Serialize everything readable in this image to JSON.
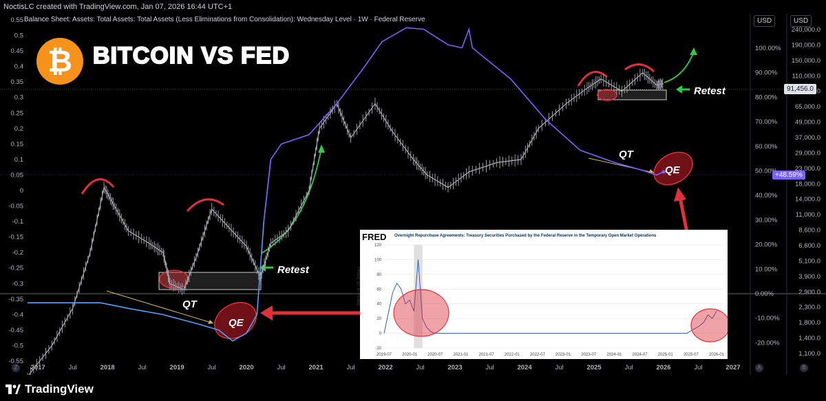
{
  "header": {
    "creator_line": "NoctisLC created with TradingView.com, Jan 07, 2026 16:44 UTC+1",
    "series_title": "Balance Sheet: Assets: Total Assets: Total Assets (Less Eliminations from Consolidation): Wednesday Level · 1W · Federal Reserve",
    "currency_left": "USD",
    "currency_right": "USD"
  },
  "overlay": {
    "title": "BITCOIN VS FED",
    "logo_icon": "bitcoin-logo-icon",
    "qt_label_left": "QT",
    "qe_label_left": "QE",
    "qt_label_right": "QT",
    "qe_label_right": "QE",
    "retest_left": "Retest",
    "retest_right": "Retest"
  },
  "price_scale": {
    "last_price": "91,456.0",
    "pct_badge": "+48.59%"
  },
  "footer": {
    "brand": "TradingView",
    "corner_left": "Z",
    "corner_right_a": "A",
    "corner_right_b": "B"
  },
  "fred_inset": {
    "logo": "FRED",
    "title": "Overnight Repurchase Agreements: Treasury Securities Purchased by the Federal Reserve in the Temporary Open Market Operations",
    "ylabel": "Billions of US Dollars",
    "x_ticks": [
      "2019-07",
      "2020-01",
      "2020-07",
      "2021-01",
      "2021-07",
      "2022-01",
      "2022-07",
      "2023-01",
      "2023-07",
      "2024-01",
      "2024-07",
      "2025-01",
      "2025-07",
      "2026-01"
    ],
    "y_ticks": [
      "120",
      "100",
      "80",
      "60",
      "40",
      "20",
      "0",
      "-20"
    ],
    "series": [
      {
        "x": "2019-07",
        "y": 0
      },
      {
        "x": "2019-09",
        "y": 55
      },
      {
        "x": "2019-10",
        "y": 68
      },
      {
        "x": "2019-11",
        "y": 60
      },
      {
        "x": "2019-12",
        "y": 40
      },
      {
        "x": "2020-01",
        "y": 45
      },
      {
        "x": "2020-02",
        "y": 30
      },
      {
        "x": "2020-03",
        "y": 100
      },
      {
        "x": "2020-04",
        "y": 20
      },
      {
        "x": "2020-05",
        "y": 8
      },
      {
        "x": "2020-06",
        "y": 2
      },
      {
        "x": "2020-07",
        "y": 0
      },
      {
        "x": "2025-01",
        "y": 0
      },
      {
        "x": "2025-06",
        "y": 0
      },
      {
        "x": "2025-09",
        "y": 10
      },
      {
        "x": "2025-10",
        "y": 15
      },
      {
        "x": "2025-11",
        "y": 25
      },
      {
        "x": "2025-12",
        "y": 20
      },
      {
        "x": "2026-01",
        "y": 30
      }
    ]
  },
  "chart_data": {
    "type": "line",
    "title": "Balance Sheet: Assets: Total Assets: Total Assets (Less Eliminations from Consolidation): Wednesday Level · 1W · Federal Reserve",
    "x_ticks": [
      "2017",
      "Jul",
      "2018",
      "Jul",
      "2019",
      "Jul",
      "2020",
      "Jul",
      "2021",
      "Jul",
      "2022",
      "Jul",
      "2023",
      "Jul",
      "2024",
      "Jul",
      "2025",
      "Jul",
      "2026",
      "Jul",
      "2027"
    ],
    "left_axis_ticks": [
      "0.55",
      "0.5",
      "0.45",
      "0.4",
      "0.35",
      "0.3",
      "0.25",
      "0.2",
      "0.15",
      "0.1",
      "0.05",
      "0",
      "-0.05",
      "-0.1",
      "-0.15",
      "-0.2",
      "-0.25",
      "-0.3",
      "-0.35",
      "-0.4",
      "-0.45",
      "-0.5",
      "-0.55"
    ],
    "pct_axis_ticks": [
      "100.00%",
      "90.00%",
      "80.00%",
      "70.00%",
      "60.00%",
      "50.00%",
      "40.00%",
      "30.00%",
      "20.00%",
      "10.00%",
      "0.00%",
      "-10.00%",
      "-20.00%"
    ],
    "price_axis_ticks": [
      "240,000.0",
      "190,000.0",
      "150,000.0",
      "110,000.0",
      "85,000.0",
      "65,000.0",
      "49,000.0",
      "37,000.0",
      "29,000.0",
      "23,000.0",
      "18,000.0",
      "14,000.0",
      "11,000.0",
      "8,600.0",
      "6,600.0",
      "5,100.0",
      "3,900.0",
      "2,900.0",
      "2,300.0",
      "1,800.0",
      "1,400.0",
      "1,100.0"
    ],
    "ylim": [
      -0.55,
      0.55
    ],
    "series": [
      {
        "name": "",
        "color": "#4aa3ff",
        "color_after_2020": "#7b61ff",
        "points": [
          {
            "x": 2016.85,
            "y": -0.362
          },
          {
            "x": 2017.5,
            "y": -0.362
          },
          {
            "x": 2017.9,
            "y": -0.362
          },
          {
            "x": 2018.3,
            "y": -0.38
          },
          {
            "x": 2018.8,
            "y": -0.4
          },
          {
            "x": 2019.3,
            "y": -0.43
          },
          {
            "x": 2019.6,
            "y": -0.45
          },
          {
            "x": 2019.8,
            "y": -0.485
          },
          {
            "x": 2020.0,
            "y": -0.46
          },
          {
            "x": 2020.15,
            "y": -0.4
          },
          {
            "x": 2020.25,
            "y": -0.1
          },
          {
            "x": 2020.35,
            "y": 0.1
          },
          {
            "x": 2020.5,
            "y": 0.15
          },
          {
            "x": 2020.9,
            "y": 0.18
          },
          {
            "x": 2021.3,
            "y": 0.28
          },
          {
            "x": 2021.7,
            "y": 0.4
          },
          {
            "x": 2021.95,
            "y": 0.48
          },
          {
            "x": 2022.3,
            "y": 0.525
          },
          {
            "x": 2022.55,
            "y": 0.52
          },
          {
            "x": 2022.9,
            "y": 0.47
          },
          {
            "x": 2023.1,
            "y": 0.46
          },
          {
            "x": 2023.2,
            "y": 0.52
          },
          {
            "x": 2023.25,
            "y": 0.46
          },
          {
            "x": 2023.8,
            "y": 0.36
          },
          {
            "x": 2024.3,
            "y": 0.23
          },
          {
            "x": 2024.8,
            "y": 0.13
          },
          {
            "x": 2025.3,
            "y": 0.09
          },
          {
            "x": 2025.7,
            "y": 0.065
          },
          {
            "x": 2025.9,
            "y": 0.05
          },
          {
            "x": 2026.0,
            "y": 0.06
          }
        ]
      },
      {
        "name": "",
        "color": "#b2b5be",
        "points": [
          {
            "x": 2016.85,
            "y": -0.6
          },
          {
            "x": 2017.2,
            "y": -0.5
          },
          {
            "x": 2017.5,
            "y": -0.38
          },
          {
            "x": 2017.75,
            "y": -0.2
          },
          {
            "x": 2017.95,
            "y": 0.01
          },
          {
            "x": 2018.1,
            "y": -0.05
          },
          {
            "x": 2018.3,
            "y": -0.13
          },
          {
            "x": 2018.6,
            "y": -0.17
          },
          {
            "x": 2018.8,
            "y": -0.2
          },
          {
            "x": 2018.9,
            "y": -0.3
          },
          {
            "x": 2019.1,
            "y": -0.32
          },
          {
            "x": 2019.3,
            "y": -0.2
          },
          {
            "x": 2019.5,
            "y": -0.06
          },
          {
            "x": 2019.75,
            "y": -0.12
          },
          {
            "x": 2020.0,
            "y": -0.18
          },
          {
            "x": 2020.2,
            "y": -0.28
          },
          {
            "x": 2020.35,
            "y": -0.17
          },
          {
            "x": 2020.6,
            "y": -0.13
          },
          {
            "x": 2020.9,
            "y": 0.0
          },
          {
            "x": 2021.05,
            "y": 0.2
          },
          {
            "x": 2021.3,
            "y": 0.28
          },
          {
            "x": 2021.5,
            "y": 0.17
          },
          {
            "x": 2021.85,
            "y": 0.28
          },
          {
            "x": 2022.1,
            "y": 0.19
          },
          {
            "x": 2022.4,
            "y": 0.1
          },
          {
            "x": 2022.6,
            "y": 0.05
          },
          {
            "x": 2022.9,
            "y": 0.01
          },
          {
            "x": 2023.2,
            "y": 0.06
          },
          {
            "x": 2023.6,
            "y": 0.09
          },
          {
            "x": 2023.95,
            "y": 0.1
          },
          {
            "x": 2024.2,
            "y": 0.2
          },
          {
            "x": 2024.6,
            "y": 0.28
          },
          {
            "x": 2024.9,
            "y": 0.33
          },
          {
            "x": 2025.1,
            "y": 0.36
          },
          {
            "x": 2025.4,
            "y": 0.32
          },
          {
            "x": 2025.7,
            "y": 0.38
          },
          {
            "x": 2025.9,
            "y": 0.34
          },
          {
            "x": 2026.0,
            "y": 0.345
          }
        ]
      }
    ],
    "reference_lines": {
      "y_zero_pct_label": "0.00%"
    }
  }
}
